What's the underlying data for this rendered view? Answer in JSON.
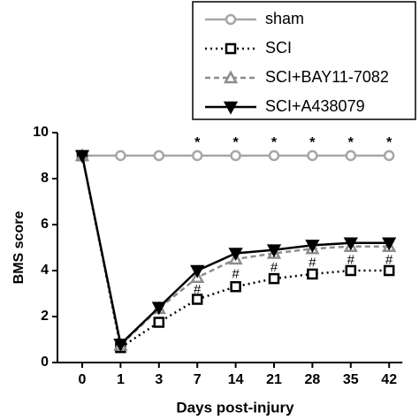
{
  "chart_data": {
    "type": "line",
    "x_label": "Days post-injury",
    "y_label": "BMS score",
    "categories": [
      "0",
      "1",
      "3",
      "7",
      "14",
      "21",
      "28",
      "35",
      "42"
    ],
    "ylim": [
      0,
      10
    ],
    "yticks": [
      0,
      2,
      4,
      6,
      8,
      10
    ],
    "legend": "top-right",
    "series": [
      {
        "name": "sham",
        "color": "#a6a6a6",
        "marker": "circle",
        "dash": "solid",
        "values": [
          9,
          9,
          9,
          9,
          9,
          9,
          9,
          9,
          9
        ]
      },
      {
        "name": "SCI",
        "color": "#000000",
        "marker": "square",
        "dash": "dotted",
        "values": [
          9,
          0.65,
          1.75,
          2.75,
          3.3,
          3.65,
          3.85,
          4.0,
          4.0
        ]
      },
      {
        "name": "SCI+BAY11-7082",
        "color": "#8c8c8c",
        "marker": "triangle-up",
        "dash": "dashed",
        "values": [
          9,
          0.75,
          2.35,
          3.7,
          4.5,
          4.75,
          4.95,
          5.05,
          5.05
        ]
      },
      {
        "name": "SCI+A438079",
        "color": "#000000",
        "marker": "triangle-down",
        "dash": "solid",
        "values": [
          9,
          0.8,
          2.4,
          4.0,
          4.75,
          4.9,
          5.1,
          5.2,
          5.2
        ]
      }
    ],
    "annotations": [
      {
        "x": "7",
        "labels": [
          "*",
          "#"
        ]
      },
      {
        "x": "14",
        "labels": [
          "*",
          "#"
        ]
      },
      {
        "x": "21",
        "labels": [
          "*",
          "#"
        ]
      },
      {
        "x": "28",
        "labels": [
          "*",
          "#"
        ]
      },
      {
        "x": "35",
        "labels": [
          "*",
          "#"
        ]
      },
      {
        "x": "42",
        "labels": [
          "*",
          "#"
        ]
      }
    ]
  }
}
